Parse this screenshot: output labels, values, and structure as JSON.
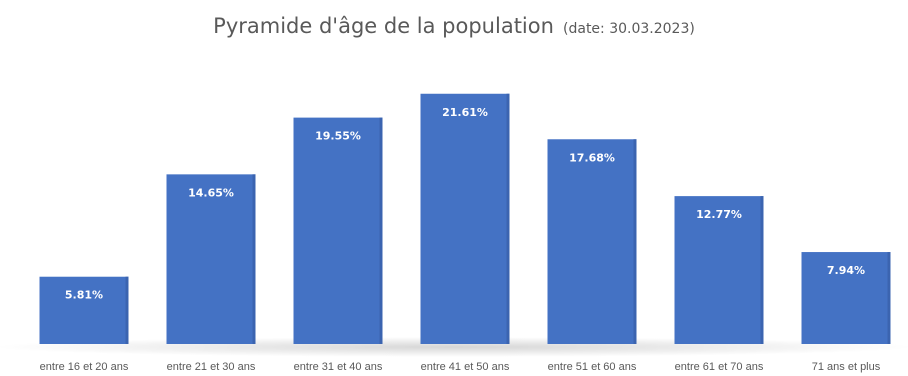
{
  "title": "Pyramide d'âge de la population",
  "subtitle": "(date: 30.03.2023)",
  "colors": {
    "bar": "#4472C4",
    "bar_dark": "#3B64B0",
    "label": "#FFFFFF",
    "tick": "#595959"
  },
  "chart_data": {
    "type": "bar",
    "title": "Pyramide d'âge de la population",
    "subtitle": "(date: 30.03.2023)",
    "categories": [
      "entre 16 et 20 ans",
      "entre 21 et 30 ans",
      "entre 31 et 40 ans",
      "entre 41 et 50 ans",
      "entre 51 et 60 ans",
      "entre 61 et 70 ans",
      "71 ans et plus"
    ],
    "values": [
      5.81,
      14.65,
      19.55,
      21.61,
      17.68,
      12.77,
      7.94
    ],
    "data_labels": [
      "5.81%",
      "14.65%",
      "19.55%",
      "21.61%",
      "17.68%",
      "12.77%",
      "7.94%"
    ],
    "xlabel": "",
    "ylabel": "",
    "ylim": [
      0,
      25
    ],
    "grid": false,
    "legend": "none"
  }
}
